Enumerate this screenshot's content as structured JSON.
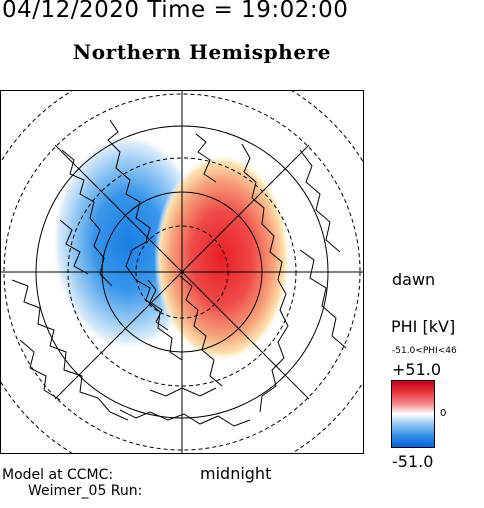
{
  "header": {
    "datetime": "04/12/2020 Time = 19:02:00",
    "title": "Northern Hemisphere"
  },
  "map": {
    "orientation_labels": {
      "right": "dawn",
      "bottom": "midnight"
    },
    "positive_cell_color": "#e02a30",
    "negative_cell_color": "#1e82e6"
  },
  "colorbar": {
    "title": "PHI [kV]",
    "range_text": "-51.0<PHI<46",
    "max_label": "+51.0",
    "zero_label": "0",
    "min_label": "-51.0",
    "colors": [
      "#c4001c",
      "#ffffff",
      "#0660d6"
    ]
  },
  "footer": {
    "credit_line1": "Model at CCMC:",
    "credit_line2": "Weimer_05 Run:"
  }
}
